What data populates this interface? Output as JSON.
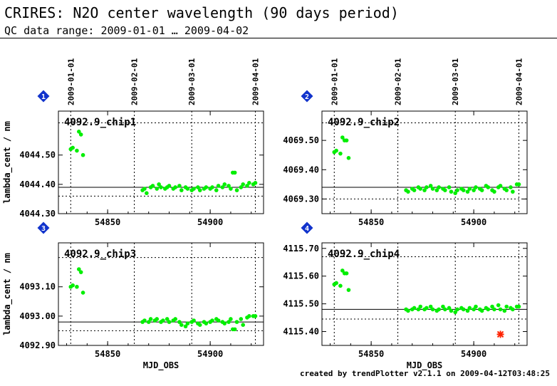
{
  "header": {
    "title": "CRIRES: N2O center wavelength (90 days period)",
    "subtitle": "QC data range: 2009-01-01 … 2009-04-02"
  },
  "footer": {
    "text": "created by trendPlotter v2.1.1 on 2009-04-12T03:48:25"
  },
  "colors": {
    "points": "#00ee00",
    "outlier": "#ff2200",
    "badge": "#1133cc"
  },
  "chart_data": [
    {
      "type": "scatter",
      "panel_number": "1",
      "title": "4092.9_chip1",
      "ylabel": "lambda_cent / nm",
      "xlabel": "",
      "xlim": [
        54826,
        54926
      ],
      "ylim": [
        4044.3,
        4044.65
      ],
      "yticks": [
        4044.3,
        4044.4,
        4044.5
      ],
      "ytick_labels": [
        "4044.30",
        "4044.40",
        "4044.50"
      ],
      "xticks": [
        54850,
        54900
      ],
      "xtick_labels": [
        "54850",
        "54900"
      ],
      "date_ticks": [
        54832,
        54863,
        54891,
        54922
      ],
      "date_labels": [
        "2009-01-01",
        "2009-02-01",
        "2009-03-01",
        "2009-04-01"
      ],
      "median": 4044.39,
      "band": [
        4044.36,
        4044.61
      ],
      "points": [
        [
          54832,
          4044.52
        ],
        [
          54833,
          4044.525
        ],
        [
          54835,
          4044.515
        ],
        [
          54836,
          4044.58
        ],
        [
          54837,
          4044.57
        ],
        [
          54838,
          4044.5
        ],
        [
          54867,
          4044.38
        ],
        [
          54868,
          4044.385
        ],
        [
          54869,
          4044.37
        ],
        [
          54871,
          4044.39
        ],
        [
          54872,
          4044.395
        ],
        [
          54874,
          4044.385
        ],
        [
          54875,
          4044.4
        ],
        [
          54876,
          4044.39
        ],
        [
          54878,
          4044.385
        ],
        [
          54879,
          4044.39
        ],
        [
          54880,
          4044.395
        ],
        [
          54882,
          4044.385
        ],
        [
          54883,
          4044.39
        ],
        [
          54885,
          4044.395
        ],
        [
          54886,
          4044.38
        ],
        [
          54888,
          4044.39
        ],
        [
          54889,
          4044.385
        ],
        [
          54891,
          4044.38
        ],
        [
          54892,
          4044.385
        ],
        [
          54894,
          4044.39
        ],
        [
          54895,
          4044.38
        ],
        [
          54897,
          4044.385
        ],
        [
          54898,
          4044.39
        ],
        [
          54900,
          4044.385
        ],
        [
          54901,
          4044.39
        ],
        [
          54903,
          4044.38
        ],
        [
          54904,
          4044.395
        ],
        [
          54906,
          4044.39
        ],
        [
          54907,
          4044.4
        ],
        [
          54909,
          4044.395
        ],
        [
          54910,
          4044.385
        ],
        [
          54911,
          4044.44
        ],
        [
          54912,
          4044.44
        ],
        [
          54913,
          4044.38
        ],
        [
          54915,
          4044.39
        ],
        [
          54916,
          4044.4
        ],
        [
          54918,
          4044.395
        ],
        [
          54919,
          4044.405
        ],
        [
          54921,
          4044.4
        ],
        [
          54922,
          4044.405
        ]
      ],
      "outliers": []
    },
    {
      "type": "scatter",
      "panel_number": "2",
      "title": "4092.9_chip2",
      "ylabel": "",
      "xlabel": "",
      "xlim": [
        54826,
        54926
      ],
      "ylim": [
        4069.25,
        4069.6
      ],
      "yticks": [
        4069.3,
        4069.4,
        4069.5
      ],
      "ytick_labels": [
        "4069.30",
        "4069.40",
        "4069.50"
      ],
      "xticks": [
        54850,
        54900
      ],
      "xtick_labels": [
        "54850",
        "54900"
      ],
      "date_ticks": [
        54832,
        54863,
        54891,
        54922
      ],
      "date_labels": [
        "2009-01-01",
        "2009-02-01",
        "2009-03-01",
        "2009-04-01"
      ],
      "median": 4069.34,
      "band": [
        4069.3,
        4069.56
      ],
      "points": [
        [
          54832,
          4069.46
        ],
        [
          54833,
          4069.465
        ],
        [
          54835,
          4069.455
        ],
        [
          54836,
          4069.51
        ],
        [
          54837,
          4069.5
        ],
        [
          54838,
          4069.5
        ],
        [
          54839,
          4069.44
        ],
        [
          54867,
          4069.33
        ],
        [
          54868,
          4069.325
        ],
        [
          54870,
          4069.335
        ],
        [
          54871,
          4069.33
        ],
        [
          54873,
          4069.34
        ],
        [
          54874,
          4069.335
        ],
        [
          54876,
          4069.33
        ],
        [
          54877,
          4069.34
        ],
        [
          54879,
          4069.345
        ],
        [
          54880,
          4069.335
        ],
        [
          54882,
          4069.33
        ],
        [
          54883,
          4069.34
        ],
        [
          54885,
          4069.335
        ],
        [
          54886,
          4069.33
        ],
        [
          54888,
          4069.34
        ],
        [
          54889,
          4069.325
        ],
        [
          54891,
          4069.32
        ],
        [
          54892,
          4069.33
        ],
        [
          54894,
          4069.335
        ],
        [
          54895,
          4069.33
        ],
        [
          54897,
          4069.325
        ],
        [
          54898,
          4069.335
        ],
        [
          54900,
          4069.33
        ],
        [
          54901,
          4069.34
        ],
        [
          54903,
          4069.335
        ],
        [
          54904,
          4069.33
        ],
        [
          54906,
          4069.345
        ],
        [
          54907,
          4069.34
        ],
        [
          54909,
          4069.33
        ],
        [
          54910,
          4069.325
        ],
        [
          54912,
          4069.34
        ],
        [
          54913,
          4069.345
        ],
        [
          54915,
          4069.335
        ],
        [
          54916,
          4069.33
        ],
        [
          54918,
          4069.34
        ],
        [
          54919,
          4069.325
        ],
        [
          54921,
          4069.35
        ],
        [
          54922,
          4069.35
        ]
      ],
      "outliers": []
    },
    {
      "type": "scatter",
      "panel_number": "3",
      "title": "4092.9_chip3",
      "ylabel": "lambda_cent / nm",
      "xlabel": "MJD_OBS",
      "xlim": [
        54826,
        54926
      ],
      "ylim": [
        4092.9,
        4093.25
      ],
      "yticks": [
        4092.9,
        4093.0,
        4093.1
      ],
      "ytick_labels": [
        "4092.90",
        "4093.00",
        "4093.10"
      ],
      "xticks": [
        54850,
        54900
      ],
      "xtick_labels": [
        "54850",
        "54900"
      ],
      "date_ticks": [
        54832,
        54863,
        54891,
        54922
      ],
      "date_labels": [],
      "median": 4092.98,
      "band": [
        4092.95,
        4093.2
      ],
      "points": [
        [
          54832,
          4093.1
        ],
        [
          54833,
          4093.105
        ],
        [
          54835,
          4093.1
        ],
        [
          54836,
          4093.16
        ],
        [
          54837,
          4093.15
        ],
        [
          54838,
          4093.08
        ],
        [
          54867,
          4092.98
        ],
        [
          54868,
          4092.985
        ],
        [
          54870,
          4092.98
        ],
        [
          54871,
          4092.99
        ],
        [
          54873,
          4092.985
        ],
        [
          54874,
          4092.99
        ],
        [
          54876,
          4092.98
        ],
        [
          54877,
          4092.985
        ],
        [
          54879,
          4092.99
        ],
        [
          54880,
          4092.98
        ],
        [
          54882,
          4092.985
        ],
        [
          54883,
          4092.99
        ],
        [
          54885,
          4092.98
        ],
        [
          54886,
          4092.97
        ],
        [
          54888,
          4092.965
        ],
        [
          54889,
          4092.975
        ],
        [
          54891,
          4092.98
        ],
        [
          54892,
          4092.985
        ],
        [
          54894,
          4092.975
        ],
        [
          54895,
          4092.97
        ],
        [
          54897,
          4092.98
        ],
        [
          54898,
          4092.975
        ],
        [
          54900,
          4092.98
        ],
        [
          54901,
          4092.985
        ],
        [
          54903,
          4092.99
        ],
        [
          54904,
          4092.985
        ],
        [
          54906,
          4092.98
        ],
        [
          54907,
          4092.975
        ],
        [
          54909,
          4092.98
        ],
        [
          54910,
          4092.99
        ],
        [
          54911,
          4092.955
        ],
        [
          54912,
          4092.955
        ],
        [
          54913,
          4092.98
        ],
        [
          54915,
          4092.99
        ],
        [
          54916,
          4092.97
        ],
        [
          54918,
          4092.995
        ],
        [
          54919,
          4093.0
        ],
        [
          54921,
          4093.0
        ],
        [
          54922,
          4093.0
        ]
      ],
      "outliers": []
    },
    {
      "type": "scatter",
      "panel_number": "4",
      "title": "4092.9_chip4",
      "ylabel": "",
      "xlabel": "MJD_OBS",
      "xlim": [
        54826,
        54926
      ],
      "ylim": [
        4115.35,
        4115.72
      ],
      "yticks": [
        4115.4,
        4115.5,
        4115.6,
        4115.7
      ],
      "ytick_labels": [
        "4115.40",
        "4115.50",
        "4115.60",
        "4115.70"
      ],
      "xticks": [
        54850,
        54900
      ],
      "xtick_labels": [
        "54850",
        "54900"
      ],
      "date_ticks": [
        54832,
        54863,
        54891,
        54922
      ],
      "date_labels": [],
      "median": 4115.48,
      "band": [
        4115.445,
        4115.67
      ],
      "points": [
        [
          54832,
          4115.57
        ],
        [
          54833,
          4115.575
        ],
        [
          54835,
          4115.565
        ],
        [
          54836,
          4115.62
        ],
        [
          54837,
          4115.61
        ],
        [
          54838,
          4115.61
        ],
        [
          54839,
          4115.55
        ],
        [
          54867,
          4115.48
        ],
        [
          54868,
          4115.475
        ],
        [
          54870,
          4115.48
        ],
        [
          54871,
          4115.485
        ],
        [
          54873,
          4115.48
        ],
        [
          54874,
          4115.49
        ],
        [
          54876,
          4115.48
        ],
        [
          54877,
          4115.485
        ],
        [
          54879,
          4115.49
        ],
        [
          54880,
          4115.48
        ],
        [
          54882,
          4115.475
        ],
        [
          54883,
          4115.48
        ],
        [
          54885,
          4115.49
        ],
        [
          54886,
          4115.48
        ],
        [
          54888,
          4115.485
        ],
        [
          54889,
          4115.475
        ],
        [
          54891,
          4115.47
        ],
        [
          54892,
          4115.48
        ],
        [
          54894,
          4115.485
        ],
        [
          54895,
          4115.48
        ],
        [
          54897,
          4115.475
        ],
        [
          54898,
          4115.485
        ],
        [
          54900,
          4115.48
        ],
        [
          54901,
          4115.49
        ],
        [
          54903,
          4115.48
        ],
        [
          54904,
          4115.475
        ],
        [
          54906,
          4115.485
        ],
        [
          54907,
          4115.48
        ],
        [
          54909,
          4115.49
        ],
        [
          54910,
          4115.48
        ],
        [
          54912,
          4115.495
        ],
        [
          54913,
          4115.48
        ],
        [
          54915,
          4115.475
        ],
        [
          54916,
          4115.49
        ],
        [
          54918,
          4115.485
        ],
        [
          54919,
          4115.48
        ],
        [
          54921,
          4115.49
        ],
        [
          54922,
          4115.49
        ]
      ],
      "outliers": [
        [
          54913,
          4115.39
        ]
      ]
    }
  ]
}
